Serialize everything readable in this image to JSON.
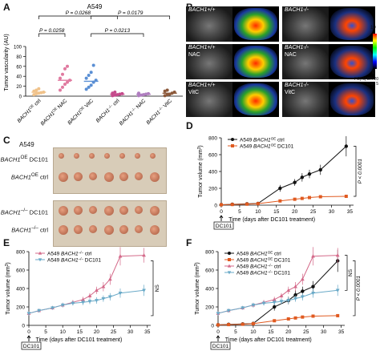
{
  "panels": {
    "a": "A",
    "b": "B",
    "c": "C",
    "d": "D",
    "e": "E",
    "f": "F"
  },
  "panelA": {
    "title": "A549",
    "ylabel": "Tumor vascularity (AU)",
    "yticks": [
      "0",
      "20",
      "40",
      "60",
      "80",
      "100"
    ],
    "pvalues": [
      "P = 0.0268",
      "P = 0.0179",
      "P = 0.0258",
      "P = 0.0213"
    ],
    "groups": [
      {
        "label": "BACH1OE ctrl",
        "html": "BACH1<sup>OE</sup> ctrl",
        "color": "#f0c28a",
        "mean": 8,
        "points": [
          3,
          5,
          6,
          7,
          8,
          10,
          12,
          15
        ]
      },
      {
        "label": "BACH1OE NAC",
        "html": "BACH1<sup>OE</sup> NAC",
        "color": "#e07aa0",
        "mean": 32,
        "points": [
          12,
          18,
          24,
          28,
          32,
          36,
          44,
          55,
          60
        ]
      },
      {
        "label": "BACH1OE VitC",
        "html": "BACH1<sup>OE</sup> VitC",
        "color": "#5a8fd4",
        "mean": 30,
        "points": [
          14,
          18,
          22,
          28,
          32,
          36,
          42,
          48,
          62
        ]
      },
      {
        "label": "BACH1-/- ctrl",
        "html": "BACH1<sup>–/–</sup> ctrl",
        "color": "#c54b8c",
        "mean": 4,
        "points": [
          1,
          2,
          3,
          4,
          5,
          6,
          8
        ]
      },
      {
        "label": "BACH1-/- NAC",
        "html": "BACH1<sup>–/–</sup> NAC",
        "color": "#b07ec0",
        "mean": 4,
        "points": [
          1,
          2,
          3,
          4,
          5,
          6
        ]
      },
      {
        "label": "BACH1-/- VitC",
        "html": "BACH1<sup>–/–</sup> VitC",
        "color": "#8c5a3c",
        "mean": 6,
        "points": [
          1,
          3,
          4,
          6,
          8,
          10,
          12
        ]
      }
    ]
  },
  "panelB": {
    "rows": [
      {
        "left": "BACH1+/+",
        "right": "BACH1-/-",
        "sub": ""
      },
      {
        "left": "BACH1+/+",
        "right": "BACH1-/-",
        "sub": "NAC"
      },
      {
        "left": "BACH1+/+",
        "right": "BACH1-/-",
        "sub": "VitC"
      }
    ],
    "scale": {
      "top": "19",
      "bottom": "0",
      "side": "PE(%) DR 20 Cain 5"
    }
  },
  "panelC": {
    "title": "A549",
    "rows": [
      "BACH1OE DC101",
      "BACH1OE ctrl",
      "BACH1-/- DC101",
      "BACH1-/- ctrl"
    ],
    "rowsHtml": [
      "<i>BACH1</i><sup>OE</sup> DC101",
      "<i>BACH1</i><sup>OE</sup> ctrl",
      "<i>BACH1</i><sup>–/–</sup> DC101",
      "<i>BACH1</i><sup>–/–</sup> ctrl"
    ]
  },
  "chart_data": [
    {
      "type": "line",
      "panel": "D",
      "ylabel": "Tumor volume (mm3)",
      "xlabel": "Time (days after DC101 treatment)",
      "xticks": [
        0,
        5,
        10,
        15,
        20,
        25,
        30,
        35
      ],
      "yticks": [
        0,
        200,
        400,
        600,
        800
      ],
      "ylim": [
        0,
        800
      ],
      "xlim": [
        0,
        36
      ],
      "arrow": "DC101",
      "pvalue": "P < 0.0001",
      "series": [
        {
          "name": "A549 BACH1OE ctrl",
          "color": "#111111",
          "marker": "circle",
          "x": [
            0,
            3,
            7,
            10,
            16,
            20,
            22,
            24,
            27,
            34
          ],
          "y": [
            5,
            10,
            15,
            20,
            200,
            270,
            330,
            370,
            420,
            700
          ],
          "err": [
            3,
            5,
            5,
            8,
            40,
            40,
            50,
            50,
            60,
            120
          ]
        },
        {
          "name": "A549 BACH1OE DC101",
          "color": "#e05a20",
          "marker": "square",
          "x": [
            0,
            3,
            7,
            10,
            16,
            20,
            22,
            24,
            27,
            34
          ],
          "y": [
            5,
            8,
            12,
            18,
            50,
            70,
            80,
            90,
            100,
            105
          ],
          "err": [
            2,
            3,
            3,
            5,
            10,
            10,
            10,
            10,
            12,
            15
          ]
        }
      ]
    },
    {
      "type": "line",
      "panel": "E",
      "ylabel": "Tumor volume (mm3)",
      "xlabel": "Time (days after DC101 treatment)",
      "xticks": [
        0,
        5,
        10,
        15,
        20,
        25,
        30,
        35
      ],
      "yticks": [
        0,
        200,
        400,
        600,
        800
      ],
      "ylim": [
        0,
        800
      ],
      "xlim": [
        0,
        36
      ],
      "arrow": "DC101",
      "pvalue": "NS",
      "series": [
        {
          "name": "A549 BACH1-/- ctrl",
          "color": "#d46a8a",
          "marker": "triangle",
          "x": [
            0,
            3,
            7,
            10,
            13,
            16,
            18,
            20,
            22,
            24,
            27,
            34
          ],
          "y": [
            130,
            160,
            190,
            220,
            250,
            280,
            320,
            380,
            420,
            500,
            750,
            760
          ],
          "err": [
            20,
            20,
            20,
            25,
            25,
            30,
            30,
            40,
            50,
            60,
            100,
            80
          ]
        },
        {
          "name": "A549 BACH1-/- DC101",
          "color": "#6aaac8",
          "marker": "triangle-down",
          "x": [
            0,
            3,
            7,
            10,
            13,
            16,
            18,
            20,
            22,
            24,
            27,
            34
          ],
          "y": [
            130,
            160,
            190,
            220,
            240,
            250,
            260,
            270,
            290,
            310,
            350,
            380
          ],
          "err": [
            20,
            20,
            20,
            25,
            25,
            30,
            30,
            35,
            35,
            40,
            50,
            60
          ]
        }
      ]
    },
    {
      "type": "line",
      "panel": "F",
      "ylabel": "Tumor volume (mm3)",
      "xlabel": "Time (days after DC101 treatment)",
      "xticks": [
        0,
        5,
        10,
        15,
        20,
        25,
        30,
        35
      ],
      "yticks": [
        0,
        200,
        400,
        600,
        800
      ],
      "ylim": [
        0,
        800
      ],
      "xlim": [
        0,
        36
      ],
      "arrow": "DC101",
      "pvalues": [
        "NS",
        "P < 0.0001"
      ],
      "series": [
        {
          "name": "A549 BACH1OE ctrl",
          "color": "#111111",
          "marker": "circle",
          "x": [
            0,
            3,
            7,
            10,
            16,
            20,
            22,
            24,
            27,
            34
          ],
          "y": [
            5,
            10,
            15,
            20,
            200,
            270,
            330,
            370,
            420,
            700
          ],
          "err": [
            3,
            5,
            5,
            8,
            40,
            40,
            50,
            50,
            60,
            120
          ]
        },
        {
          "name": "A549 BACH1OE DC101",
          "color": "#e05a20",
          "marker": "square",
          "x": [
            0,
            3,
            7,
            10,
            16,
            20,
            22,
            24,
            27,
            34
          ],
          "y": [
            5,
            8,
            12,
            18,
            50,
            70,
            80,
            90,
            100,
            105
          ],
          "err": [
            2,
            3,
            3,
            5,
            10,
            10,
            10,
            10,
            12,
            15
          ]
        },
        {
          "name": "A549 BACH1-/- ctrl",
          "color": "#d46a8a",
          "marker": "triangle",
          "x": [
            0,
            3,
            7,
            10,
            13,
            16,
            18,
            20,
            22,
            24,
            27,
            34
          ],
          "y": [
            130,
            160,
            190,
            220,
            250,
            280,
            320,
            380,
            420,
            500,
            750,
            760
          ],
          "err": [
            20,
            20,
            20,
            25,
            25,
            30,
            30,
            40,
            50,
            60,
            100,
            80
          ]
        },
        {
          "name": "A549 BACH1-/- DC101",
          "color": "#6aaac8",
          "marker": "triangle-down",
          "x": [
            0,
            3,
            7,
            10,
            13,
            16,
            18,
            20,
            22,
            24,
            27,
            34
          ],
          "y": [
            130,
            160,
            190,
            220,
            240,
            250,
            260,
            270,
            290,
            310,
            350,
            380
          ],
          "err": [
            20,
            20,
            20,
            25,
            25,
            30,
            30,
            35,
            35,
            40,
            50,
            60
          ]
        }
      ]
    }
  ]
}
